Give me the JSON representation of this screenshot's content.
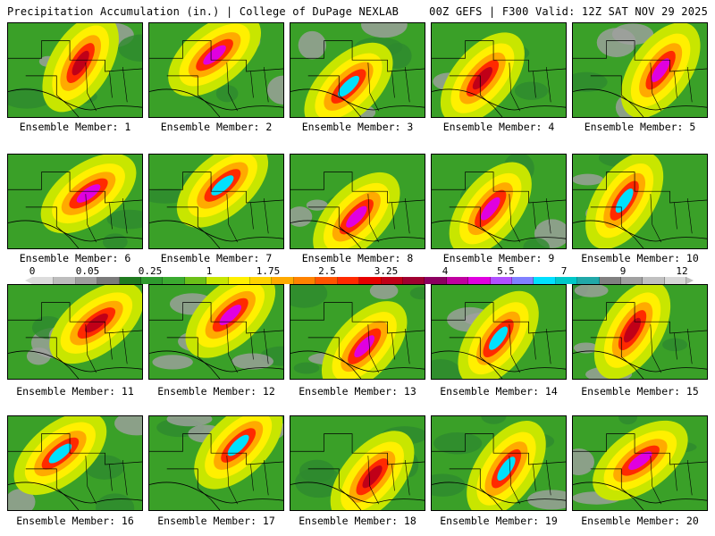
{
  "header": {
    "left_title": "Precipitation Accumulation (in.) | College of DuPage NEXLAB",
    "right_title": "00Z GEFS | F300 Valid: 12Z SAT NOV 29 2025"
  },
  "colorbar": {
    "tick_labels": [
      "0",
      "0.05",
      "0.25",
      "1",
      "1.75",
      "2.5",
      "3.25",
      "4",
      "5.5",
      "7",
      "9",
      "12"
    ],
    "colors": [
      "#dcdcdc",
      "#bdbdbd",
      "#9e9e9e",
      "#7a7a7a",
      "#207a20",
      "#2e9a2e",
      "#3aaa30",
      "#6cc018",
      "#c8e600",
      "#fff000",
      "#ffd200",
      "#ffaa00",
      "#ff8200",
      "#ff5500",
      "#ff2a00",
      "#e60000",
      "#c00018",
      "#a00030",
      "#8c0060",
      "#c000a0",
      "#e000e0",
      "#b050ff",
      "#8080ff",
      "#00e0ff",
      "#00c8c8",
      "#20a8a8",
      "#808080",
      "#a0a0a0",
      "#c0c0c0",
      "#d8d8d8"
    ]
  },
  "members": [
    {
      "label": "Ensemble Member: 1",
      "peak": "red"
    },
    {
      "label": "Ensemble Member: 2",
      "peak": "magenta"
    },
    {
      "label": "Ensemble Member: 3",
      "peak": "cyan"
    },
    {
      "label": "Ensemble Member: 4",
      "peak": "red"
    },
    {
      "label": "Ensemble Member: 5",
      "peak": "magenta"
    },
    {
      "label": "Ensemble Member: 6",
      "peak": "magenta"
    },
    {
      "label": "Ensemble Member: 7",
      "peak": "cyan"
    },
    {
      "label": "Ensemble Member: 8",
      "peak": "magenta"
    },
    {
      "label": "Ensemble Member: 9",
      "peak": "magenta"
    },
    {
      "label": "Ensemble Member: 10",
      "peak": "cyan"
    },
    {
      "label": "Ensemble Member: 11",
      "peak": "red"
    },
    {
      "label": "Ensemble Member: 12",
      "peak": "magenta"
    },
    {
      "label": "Ensemble Member: 13",
      "peak": "magenta"
    },
    {
      "label": "Ensemble Member: 14",
      "peak": "cyan"
    },
    {
      "label": "Ensemble Member: 15",
      "peak": "red"
    },
    {
      "label": "Ensemble Member: 16",
      "peak": "cyan"
    },
    {
      "label": "Ensemble Member: 17",
      "peak": "cyan"
    },
    {
      "label": "Ensemble Member: 18",
      "peak": "red"
    },
    {
      "label": "Ensemble Member: 19",
      "peak": "cyan"
    },
    {
      "label": "Ensemble Member: 20",
      "peak": "magenta"
    }
  ]
}
